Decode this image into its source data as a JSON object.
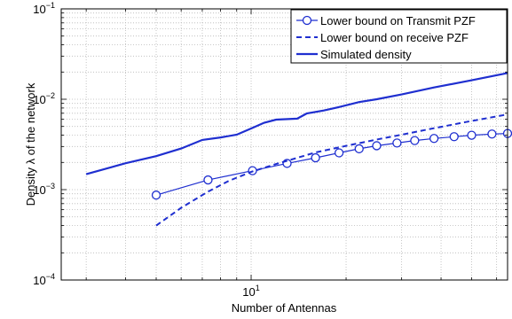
{
  "chart_data": {
    "type": "line",
    "xscale": "log",
    "yscale": "log",
    "xlim": [
      2.5,
      65
    ],
    "ylim": [
      0.0001,
      0.1
    ],
    "grid": true,
    "legend_position": "top-right",
    "xlabel": "Number of Antennas",
    "ylabel": "Density λ of the network",
    "x_ticks": [
      {
        "value": 10,
        "base": "10",
        "exp": "1"
      }
    ],
    "y_ticks": [
      {
        "value": 0.1,
        "base": "10",
        "exp": "−1"
      },
      {
        "value": 0.01,
        "base": "10",
        "exp": "−2"
      },
      {
        "value": 0.001,
        "base": "10",
        "exp": "−3"
      },
      {
        "value": 0.0001,
        "base": "10",
        "exp": "−4"
      }
    ],
    "series": [
      {
        "name": "Lower bound on Transmit PZF",
        "style": "solid-circle",
        "color": "#1f2fd0",
        "x": [
          5,
          7.3,
          10.1,
          13,
          16,
          19,
          22,
          25,
          29,
          33,
          38,
          44,
          50,
          58,
          65
        ],
        "y": [
          0.00087,
          0.00128,
          0.00162,
          0.00195,
          0.00225,
          0.00255,
          0.00283,
          0.00306,
          0.00328,
          0.00349,
          0.00368,
          0.00385,
          0.004,
          0.00412,
          0.00418
        ]
      },
      {
        "name": "Lower bound on receive PZF",
        "style": "dashed",
        "color": "#1f2fd0",
        "x": [
          5,
          6,
          7.3,
          8.5,
          10,
          12,
          14,
          16,
          20,
          25,
          30,
          38,
          48,
          65
        ],
        "y": [
          0.0004,
          0.00063,
          0.00095,
          0.00125,
          0.00157,
          0.00192,
          0.00225,
          0.00258,
          0.00305,
          0.00358,
          0.00405,
          0.00478,
          0.0056,
          0.0068
        ]
      },
      {
        "name": "Simulated density",
        "style": "solid-thick",
        "color": "#1f2fd0",
        "x": [
          3,
          4,
          5,
          6,
          7,
          8,
          9,
          10,
          11,
          12,
          14,
          15,
          17,
          19,
          22,
          25,
          30,
          38,
          50,
          65
        ],
        "y": [
          0.00148,
          0.00196,
          0.00235,
          0.00285,
          0.00355,
          0.00378,
          0.00405,
          0.00475,
          0.0055,
          0.00595,
          0.0061,
          0.00695,
          0.0075,
          0.0082,
          0.0093,
          0.01,
          0.0113,
          0.0135,
          0.0162,
          0.0195
        ]
      }
    ]
  }
}
